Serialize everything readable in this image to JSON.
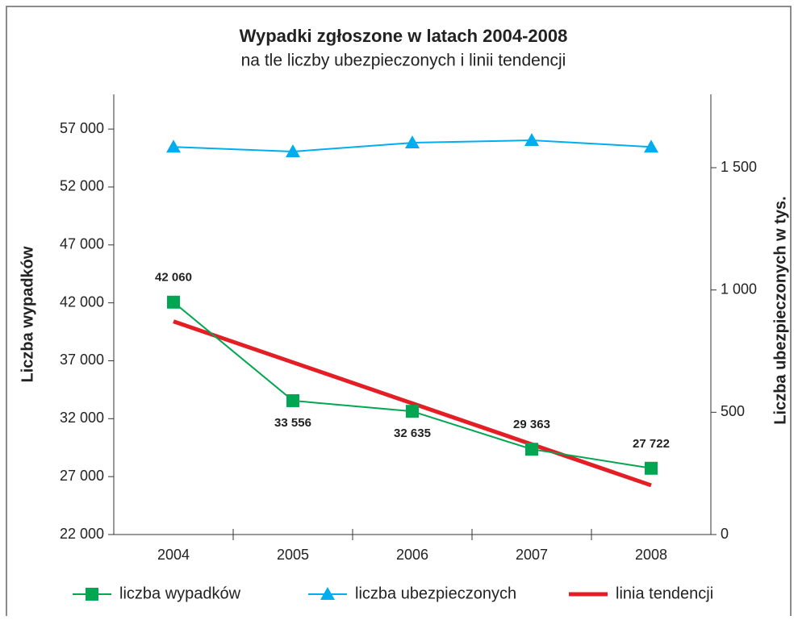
{
  "chart_data": {
    "type": "line",
    "title": "Wypadki zgłoszone w latach 2004-2008",
    "subtitle": "na tle liczby ubezpieczonych i linii tendencji",
    "ylabel": "Liczba wypadków",
    "y2label": "Liczba ubezpieczonych w tys.",
    "categories": [
      "2004",
      "2005",
      "2006",
      "2007",
      "2008"
    ],
    "ylim": [
      22000,
      60000
    ],
    "yticks": [
      {
        "value": 22000,
        "label": "22 000"
      },
      {
        "value": 27000,
        "label": "27 000"
      },
      {
        "value": 32000,
        "label": "32 000"
      },
      {
        "value": 37000,
        "label": "37 000"
      },
      {
        "value": 42000,
        "label": "42 000"
      },
      {
        "value": 47000,
        "label": "47 000"
      },
      {
        "value": 52000,
        "label": "52 000"
      },
      {
        "value": 57000,
        "label": "57 000"
      }
    ],
    "y2lim": [
      0,
      1800
    ],
    "y2ticks": [
      0,
      500,
      {
        "value": 1000,
        "label": "1 000"
      },
      {
        "value": 1500,
        "label": "1 500"
      }
    ],
    "series": [
      {
        "name": "liczba wypadków",
        "color": "#00a651",
        "marker": "square",
        "values": [
          42060,
          33556,
          32635,
          29363,
          27722
        ],
        "value_labels": [
          "42 060",
          "33 556",
          "32 635",
          "29 363",
          "27 722"
        ]
      },
      {
        "name": "liczba ubezpieczonych",
        "color": "#00aeef",
        "marker": "triangle",
        "axis": "y2",
        "values": [
          1585,
          1566,
          1602,
          1612,
          1585
        ]
      },
      {
        "name": "linia tendencji",
        "color": "#e31e24",
        "marker": "none",
        "values": [
          40400,
          36863,
          33325,
          29788,
          26250
        ]
      }
    ]
  }
}
